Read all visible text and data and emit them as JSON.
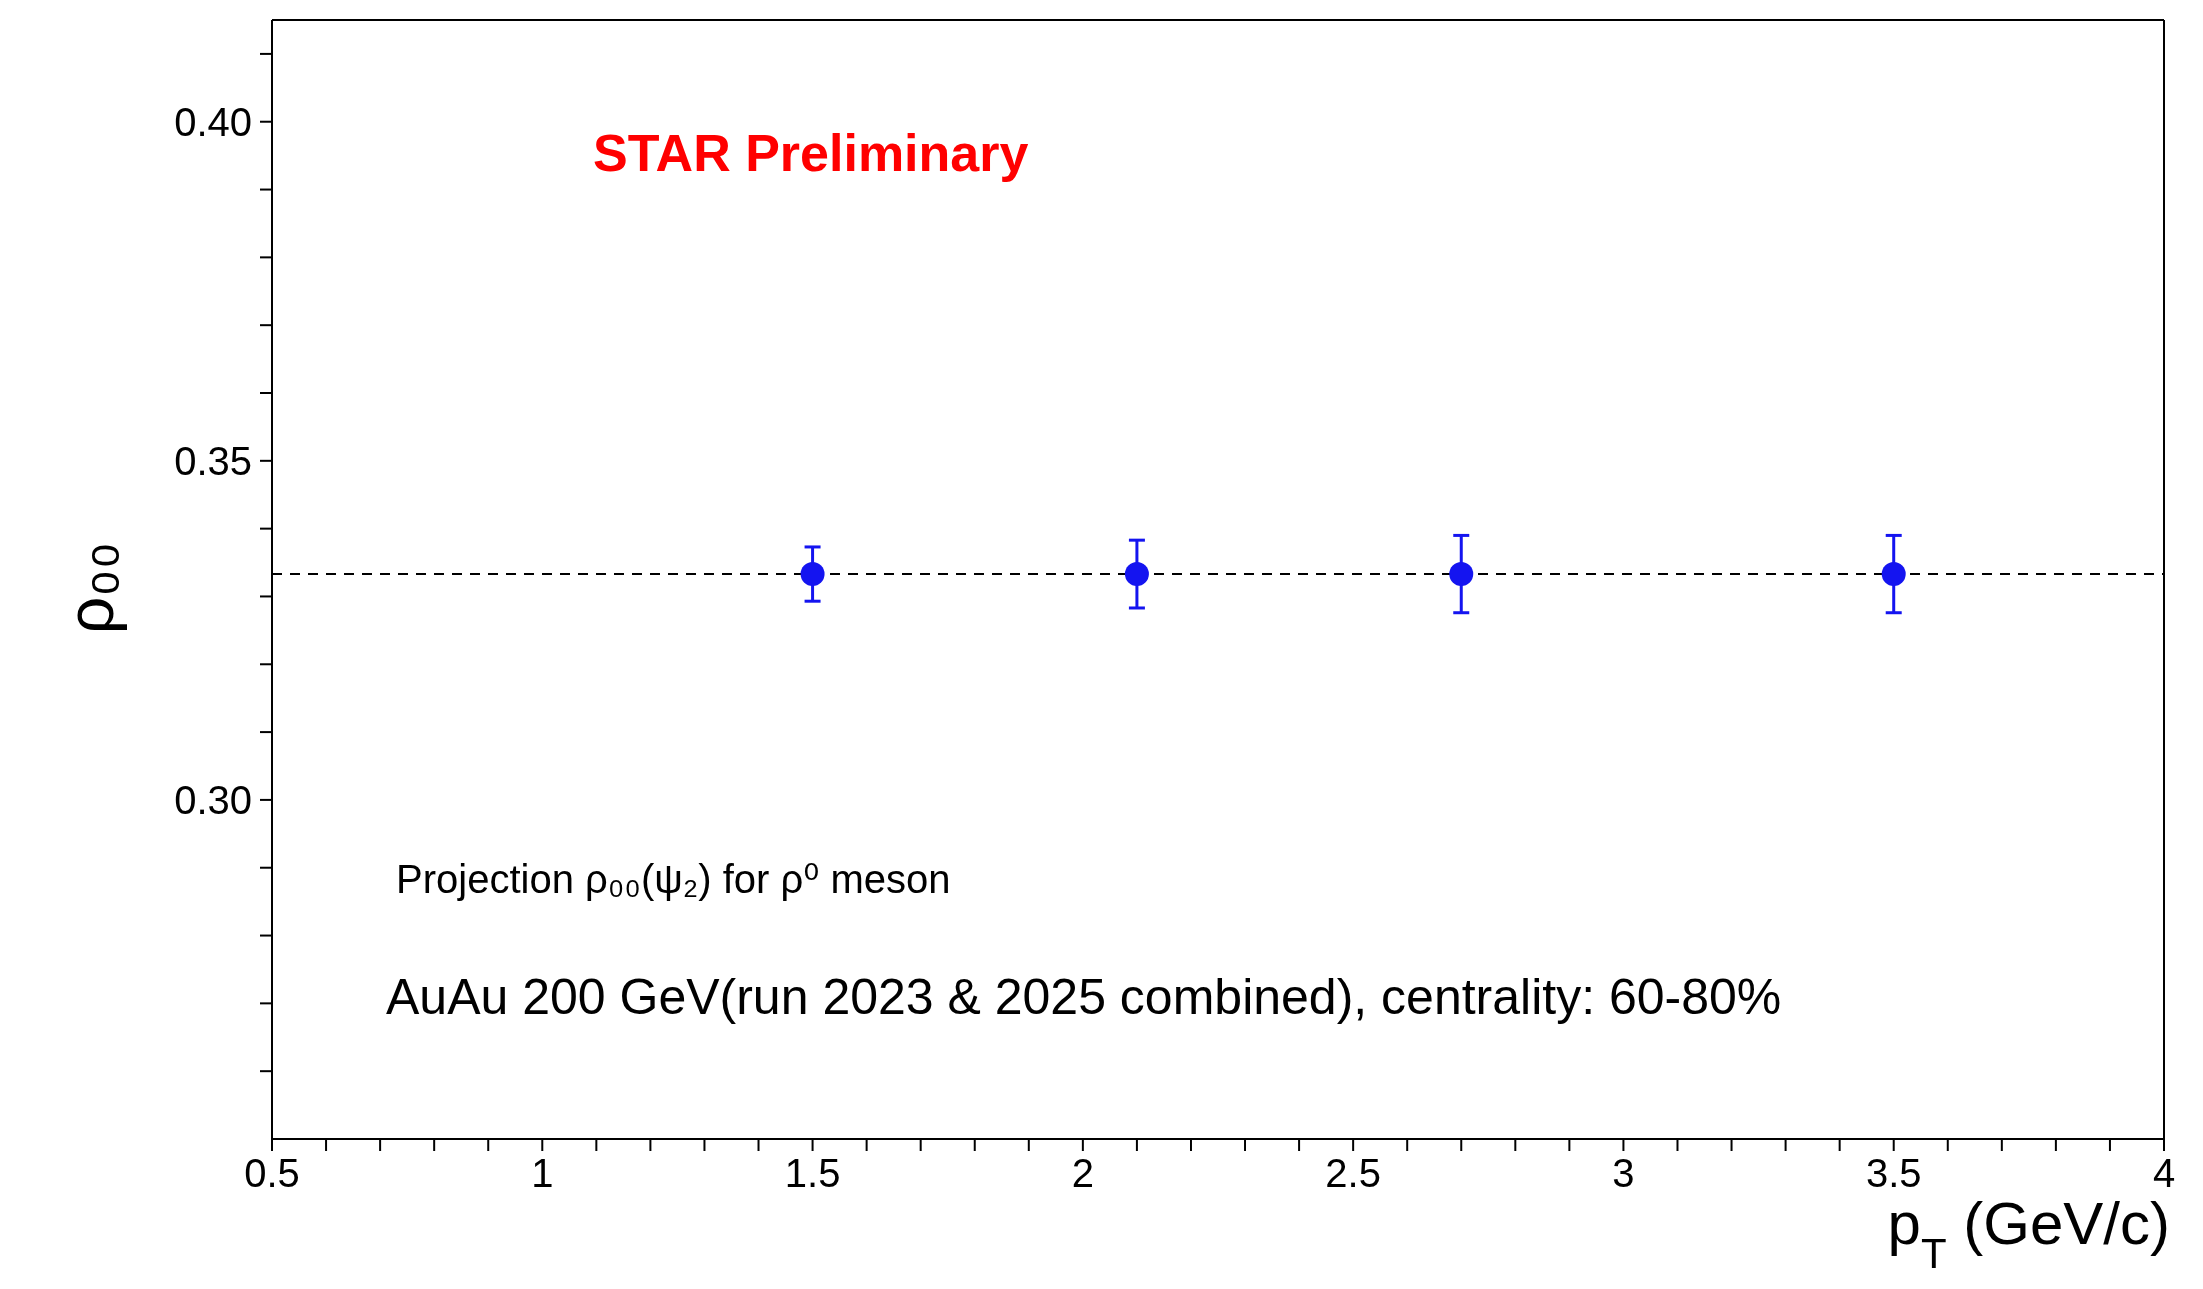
{
  "chart_data": {
    "type": "scatter",
    "xlabel": "p$_{T}$ (GeV/c)",
    "ylabel": "ρ₀₀",
    "annotations": [
      "STAR Preliminary",
      "Projection ρ₀₀(ψ₂) for ρ⁰ meson",
      "AuAu 200 GeV(run 2023 & 2025 combined), centrality: 60-80%"
    ],
    "x": [
      1.5,
      2.1,
      2.7,
      3.5
    ],
    "series": [
      {
        "color": "#1414f0",
        "values": [
          0.3333,
          0.3333,
          0.3333,
          0.3333
        ],
        "errors": [
          0.004,
          0.005,
          0.0057,
          0.0057
        ]
      }
    ],
    "marker": "circle",
    "xlim": [
      0.5,
      4
    ],
    "xticks": [
      0.5,
      {
        "value": 0.6,
        "label": null
      },
      {
        "value": 0.7,
        "label": null
      },
      {
        "value": 0.8,
        "label": null
      },
      {
        "value": 0.9,
        "label": null
      },
      1,
      {
        "value": 1.1,
        "label": null
      },
      {
        "value": 1.2,
        "label": null
      },
      {
        "value": 1.3,
        "label": null
      },
      {
        "value": 1.4,
        "label": null
      },
      1.5,
      {
        "value": 1.6,
        "label": null
      },
      {
        "value": 1.7,
        "label": null
      },
      {
        "value": 1.8,
        "label": null
      },
      {
        "value": 1.9,
        "label": null
      },
      2,
      {
        "value": 2.1,
        "label": null
      },
      {
        "value": 2.2,
        "label": null
      },
      {
        "value": 2.3,
        "label": null
      },
      {
        "value": 2.4,
        "label": null
      },
      2.5,
      {
        "value": 2.6,
        "label": null
      },
      {
        "value": 2.7,
        "label": null
      },
      {
        "value": 2.8,
        "label": null
      },
      {
        "value": 2.9,
        "label": null
      },
      3,
      {
        "value": 3.1,
        "label": null
      },
      {
        "value": 3.2,
        "label": null
      },
      {
        "value": 3.3,
        "label": null
      },
      {
        "value": 3.4,
        "label": null
      },
      3.5,
      {
        "value": 3.6,
        "label": null
      },
      {
        "value": 3.7,
        "label": null
      },
      {
        "value": 3.8,
        "label": null
      },
      {
        "value": 3.9,
        "label": null
      },
      4
    ],
    "ylim": [
      0.25,
      0.415
    ],
    "yticks": [
      {
        "value": 0.26,
        "label": null
      },
      {
        "value": 0.27,
        "label": null
      },
      {
        "value": 0.28,
        "label": null
      },
      {
        "value": 0.29,
        "label": null
      },
      {
        "value": 0.3,
        "label": "0.30"
      },
      {
        "value": 0.31,
        "label": null
      },
      {
        "value": 0.32,
        "label": null
      },
      {
        "value": 0.33,
        "label": null
      },
      {
        "value": 0.34,
        "label": null
      },
      0.35,
      {
        "value": 0.36,
        "label": null
      },
      {
        "value": 0.37,
        "label": null
      },
      {
        "value": 0.38,
        "label": null
      },
      {
        "value": 0.39,
        "label": null
      },
      {
        "value": 0.4,
        "label": "0.40"
      },
      {
        "value": 0.41,
        "label": null
      }
    ],
    "ref_lines": [
      {
        "axis": "y",
        "value": 0.3333,
        "line_style": "dashed",
        "color": "#000000"
      }
    ],
    "grid": false,
    "legend": false
  }
}
